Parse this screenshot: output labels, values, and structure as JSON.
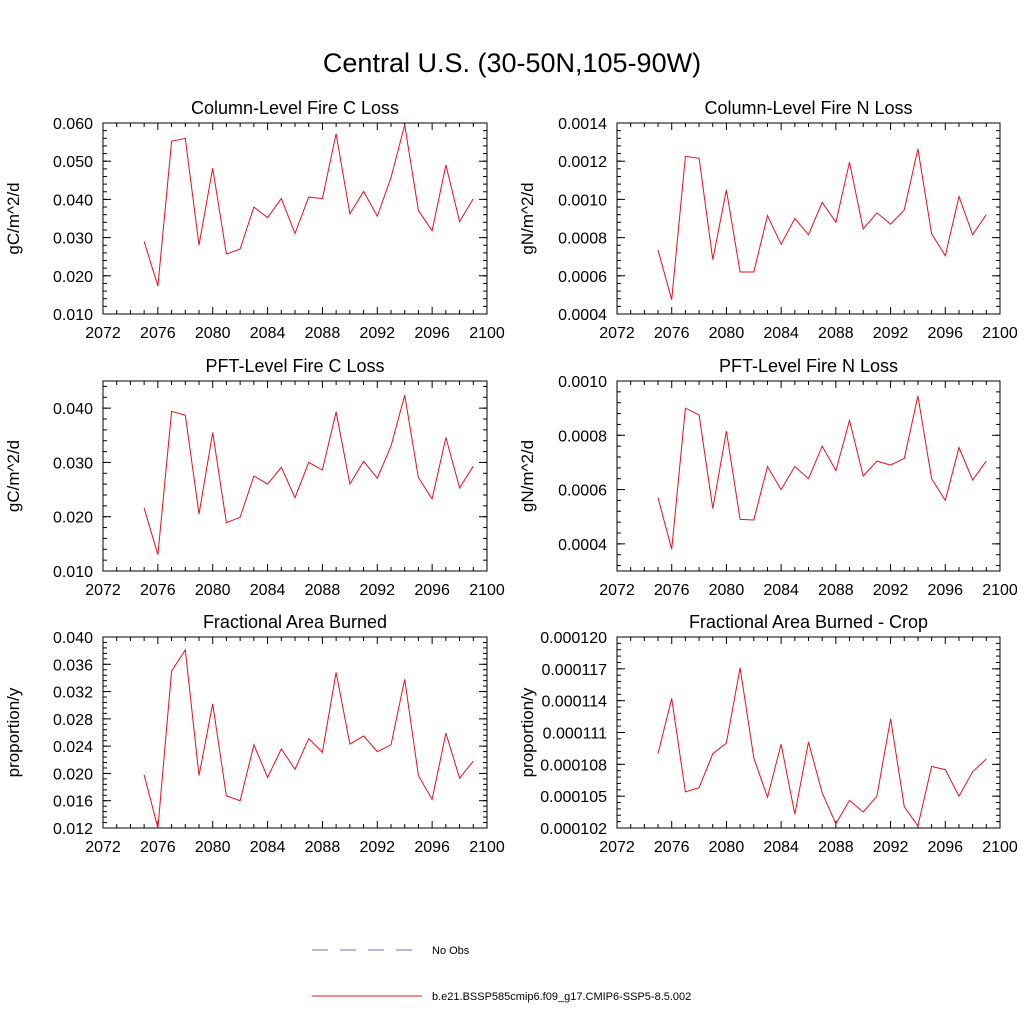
{
  "title": "Central U.S. (30-50N,105-90W)",
  "colors": {
    "series": "#e8101a",
    "obs": "#7070c0",
    "axis": "#000000"
  },
  "legend": {
    "obs_label": "No Obs",
    "model_label": "b.e21.BSSP585cmip6.f09_g17.CMIP6-SSP5-8.5.002"
  },
  "chart_data": [
    {
      "type": "line",
      "title": "Column-Level Fire C Loss",
      "ylabel": "gC/m^2/d",
      "xlim": [
        2072,
        2100
      ],
      "xticks": [
        "2072",
        "2076",
        "2080",
        "2084",
        "2088",
        "2092",
        "2096",
        "2100"
      ],
      "ylim": [
        0.01,
        0.06
      ],
      "yticks": [
        "0.010",
        "0.020",
        "0.030",
        "0.040",
        "0.050",
        "0.060"
      ],
      "x": [
        2075,
        2076,
        2077,
        2078,
        2079,
        2080,
        2081,
        2082,
        2083,
        2084,
        2085,
        2086,
        2087,
        2088,
        2089,
        2090,
        2091,
        2092,
        2093,
        2094,
        2095,
        2096,
        2097,
        2098,
        2099
      ],
      "values": [
        0.029,
        0.0173,
        0.0552,
        0.056,
        0.028,
        0.0482,
        0.0257,
        0.027,
        0.038,
        0.0352,
        0.0402,
        0.0311,
        0.0406,
        0.0402,
        0.0572,
        0.0362,
        0.0421,
        0.0356,
        0.0457,
        0.0595,
        0.0371,
        0.0318,
        0.049,
        0.0342,
        0.0402
      ]
    },
    {
      "type": "line",
      "title": "Column-Level Fire N Loss",
      "ylabel": "gN/m^2/d",
      "xlim": [
        2072,
        2100
      ],
      "xticks": [
        "2072",
        "2076",
        "2080",
        "2084",
        "2088",
        "2092",
        "2096",
        "2100"
      ],
      "ylim": [
        0.0004,
        0.0014
      ],
      "yticks": [
        "0.0004",
        "0.0006",
        "0.0008",
        "0.0010",
        "0.0012",
        "0.0014"
      ],
      "x": [
        2075,
        2076,
        2077,
        2078,
        2079,
        2080,
        2081,
        2082,
        2083,
        2084,
        2085,
        2086,
        2087,
        2088,
        2089,
        2090,
        2091,
        2092,
        2093,
        2094,
        2095,
        2096,
        2097,
        2098,
        2099
      ],
      "values": [
        0.000735,
        0.000475,
        0.001225,
        0.001215,
        0.000685,
        0.00105,
        0.00062,
        0.00062,
        0.000915,
        0.000765,
        0.0009,
        0.000815,
        0.000985,
        0.00088,
        0.001195,
        0.000845,
        0.00093,
        0.00087,
        0.000945,
        0.001265,
        0.00082,
        0.000705,
        0.001015,
        0.000815,
        0.00092
      ]
    },
    {
      "type": "line",
      "title": "PFT-Level Fire C Loss",
      "ylabel": "gC/m^2/d",
      "xlim": [
        2072,
        2100
      ],
      "xticks": [
        "2072",
        "2076",
        "2080",
        "2084",
        "2088",
        "2092",
        "2096",
        "2100"
      ],
      "ylim": [
        0.01,
        0.045
      ],
      "yticks": [
        "0.010",
        "0.020",
        "0.030",
        "0.040"
      ],
      "x": [
        2075,
        2076,
        2077,
        2078,
        2079,
        2080,
        2081,
        2082,
        2083,
        2084,
        2085,
        2086,
        2087,
        2088,
        2089,
        2090,
        2091,
        2092,
        2093,
        2094,
        2095,
        2096,
        2097,
        2098,
        2099
      ],
      "values": [
        0.0216,
        0.013,
        0.0394,
        0.0387,
        0.0205,
        0.0355,
        0.0189,
        0.0199,
        0.0275,
        0.026,
        0.0291,
        0.0235,
        0.03,
        0.0286,
        0.0393,
        0.026,
        0.0302,
        0.0271,
        0.033,
        0.0424,
        0.0272,
        0.0233,
        0.0346,
        0.0253,
        0.0293
      ]
    },
    {
      "type": "line",
      "title": "PFT-Level Fire N Loss",
      "ylabel": "gN/m^2/d",
      "xlim": [
        2072,
        2100
      ],
      "xticks": [
        "2072",
        "2076",
        "2080",
        "2084",
        "2088",
        "2092",
        "2096",
        "2100"
      ],
      "ylim": [
        0.0003,
        0.001
      ],
      "yticks": [
        "0.0004",
        "0.0006",
        "0.0008",
        "0.0010"
      ],
      "x": [
        2075,
        2076,
        2077,
        2078,
        2079,
        2080,
        2081,
        2082,
        2083,
        2084,
        2085,
        2086,
        2087,
        2088,
        2089,
        2090,
        2091,
        2092,
        2093,
        2094,
        2095,
        2096,
        2097,
        2098,
        2099
      ],
      "values": [
        0.00057,
        0.00038,
        0.0009,
        0.000875,
        0.00053,
        0.000815,
        0.00049,
        0.000488,
        0.000685,
        0.0006,
        0.000685,
        0.00064,
        0.00076,
        0.00067,
        0.000855,
        0.00065,
        0.000705,
        0.00069,
        0.000715,
        0.000945,
        0.00064,
        0.00056,
        0.000755,
        0.000635,
        0.000705
      ]
    },
    {
      "type": "line",
      "title": "Fractional Area Burned",
      "ylabel": "proportion/y",
      "xlim": [
        2072,
        2100
      ],
      "xticks": [
        "2072",
        "2076",
        "2080",
        "2084",
        "2088",
        "2092",
        "2096",
        "2100"
      ],
      "ylim": [
        0.012,
        0.04
      ],
      "yticks": [
        "0.012",
        "0.016",
        "0.020",
        "0.024",
        "0.028",
        "0.032",
        "0.036",
        "0.040"
      ],
      "x": [
        2075,
        2076,
        2077,
        2078,
        2079,
        2080,
        2081,
        2082,
        2083,
        2084,
        2085,
        2086,
        2087,
        2088,
        2089,
        2090,
        2091,
        2092,
        2093,
        2094,
        2095,
        2096,
        2097,
        2098,
        2099
      ],
      "values": [
        0.0198,
        0.012,
        0.035,
        0.0381,
        0.0197,
        0.0302,
        0.0167,
        0.016,
        0.0242,
        0.0194,
        0.0236,
        0.0206,
        0.0251,
        0.0231,
        0.0348,
        0.0243,
        0.0255,
        0.0232,
        0.0242,
        0.0338,
        0.0197,
        0.0162,
        0.0259,
        0.0193,
        0.0218
      ]
    },
    {
      "type": "line",
      "title": "Fractional Area Burned - Crop",
      "ylabel": "proportion/y",
      "xlim": [
        2072,
        2100
      ],
      "xticks": [
        "2072",
        "2076",
        "2080",
        "2084",
        "2088",
        "2092",
        "2096",
        "2100"
      ],
      "ylim": [
        0.000102,
        0.00012
      ],
      "yticks": [
        "0.000102",
        "0.000105",
        "0.000108",
        "0.000111",
        "0.000114",
        "0.000117",
        "0.000120"
      ],
      "x": [
        2075,
        2076,
        2077,
        2078,
        2079,
        2080,
        2081,
        2082,
        2083,
        2084,
        2085,
        2086,
        2087,
        2088,
        2089,
        2090,
        2091,
        2092,
        2093,
        2094,
        2095,
        2096,
        2097,
        2098,
        2099
      ],
      "values": [
        0.000109,
        0.0001142,
        0.0001054,
        0.0001058,
        0.000109,
        0.00011,
        0.0001171,
        0.0001086,
        0.0001049,
        0.0001099,
        0.0001033,
        0.0001101,
        0.0001053,
        0.0001024,
        0.0001046,
        0.0001035,
        0.000105,
        0.0001123,
        0.000104,
        0.0001022,
        0.0001078,
        0.0001075,
        0.000105,
        0.0001073,
        0.0001085
      ]
    }
  ]
}
